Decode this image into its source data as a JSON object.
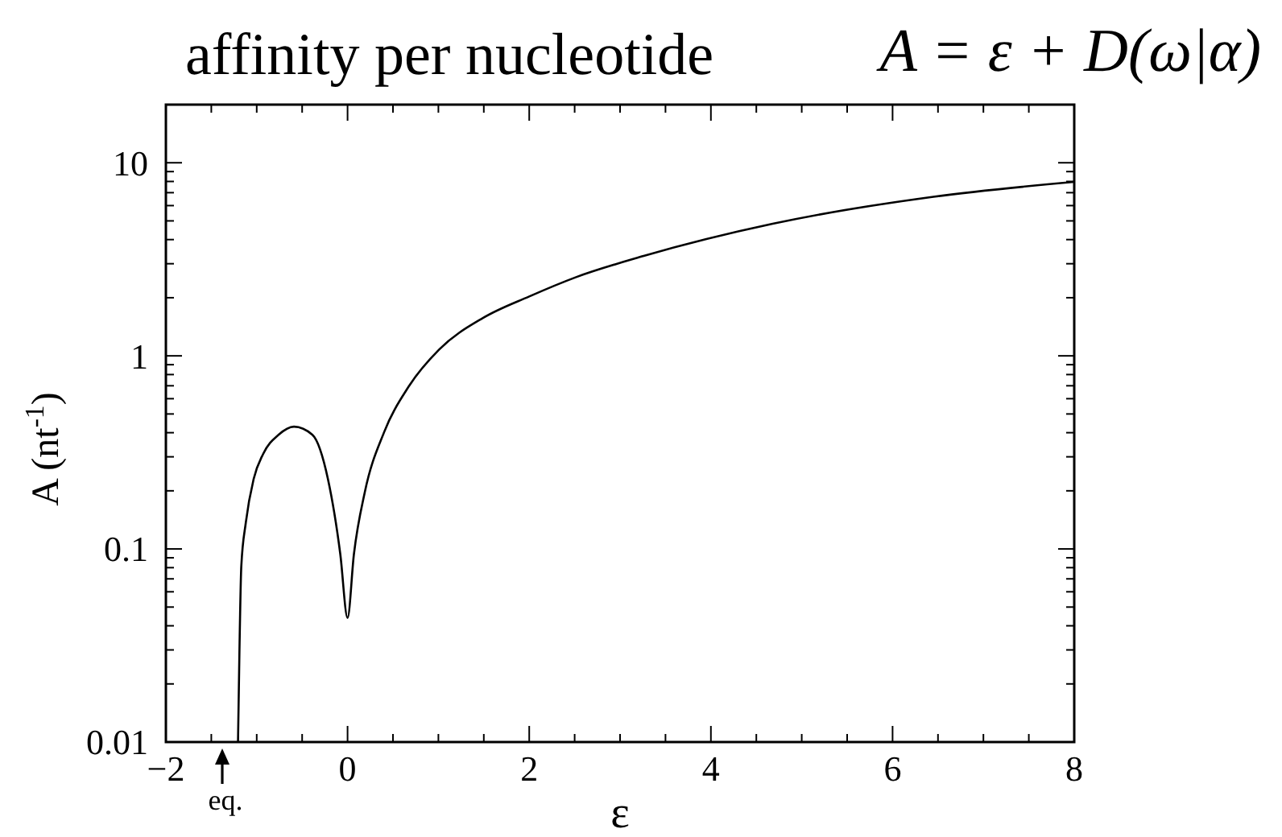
{
  "chart_data": {
    "type": "line",
    "title": "affinity per nucleotide",
    "subtitle": "A = ε + D(ω|α)",
    "xlabel": "ε",
    "ylabel": "A  (nt$^{-1}$)",
    "x": [
      -1.206,
      -1.19,
      -1.17,
      -1.12,
      -1.034,
      -0.93,
      -0.76,
      -0.59,
      -0.387,
      -0.216,
      -0.08,
      0,
      0.07,
      0.19,
      0.4,
      0.67,
      1.01,
      1.49,
      2,
      2.51,
      3.26,
      4.68,
      6.45,
      8
    ],
    "series": [
      {
        "color": "#000000",
        "values": [
          0.01,
          0.03,
          0.081,
          0.137,
          0.23,
          0.31,
          0.39,
          0.43,
          0.39,
          0.23,
          0.094,
          0.044,
          0.094,
          0.197,
          0.4,
          0.69,
          1.08,
          1.57,
          2.03,
          2.55,
          3.29,
          4.83,
          6.67,
          7.96
        ]
      }
    ],
    "xlim": [
      -2,
      8
    ],
    "ylim": [
      0.01,
      20
    ],
    "log": "y",
    "xticks": [
      {
        "value": -2,
        "label": "−2"
      },
      {
        "value": -1.5,
        "label": null
      },
      {
        "value": -1,
        "label": null
      },
      {
        "value": -0.5,
        "label": null
      },
      0,
      {
        "value": 0.5,
        "label": null
      },
      {
        "value": 1,
        "label": null
      },
      {
        "value": 1.5,
        "label": null
      },
      2,
      {
        "value": 2.5,
        "label": null
      },
      {
        "value": 3,
        "label": null
      },
      {
        "value": 3.5,
        "label": null
      },
      4,
      {
        "value": 4.5,
        "label": null
      },
      {
        "value": 5,
        "label": null
      },
      {
        "value": 5.5,
        "label": null
      },
      6,
      {
        "value": 6.5,
        "label": null
      },
      {
        "value": 7,
        "label": null
      },
      {
        "value": 7.5,
        "label": null
      },
      8
    ],
    "yticks": [
      0.01,
      {
        "value": 0.02,
        "label": null
      },
      {
        "value": 0.03,
        "label": null
      },
      {
        "value": 0.04,
        "label": null
      },
      {
        "value": 0.05,
        "label": null
      },
      {
        "value": 0.06,
        "label": null
      },
      {
        "value": 0.07,
        "label": null
      },
      {
        "value": 0.08,
        "label": null
      },
      {
        "value": 0.09,
        "label": null
      },
      0.1,
      {
        "value": 0.2,
        "label": null
      },
      {
        "value": 0.3,
        "label": null
      },
      {
        "value": 0.4,
        "label": null
      },
      {
        "value": 0.5,
        "label": null
      },
      {
        "value": 0.6,
        "label": null
      },
      {
        "value": 0.7,
        "label": null
      },
      {
        "value": 0.8,
        "label": null
      },
      {
        "value": 0.9,
        "label": null
      },
      1,
      {
        "value": 2,
        "label": null
      },
      {
        "value": 3,
        "label": null
      },
      {
        "value": 4,
        "label": null
      },
      {
        "value": 5,
        "label": null
      },
      {
        "value": 6,
        "label": null
      },
      {
        "value": 7,
        "label": null
      },
      {
        "value": 8,
        "label": null
      },
      {
        "value": 9,
        "label": null
      },
      10,
      {
        "value": 20,
        "label": null
      }
    ],
    "annotations": [
      "eq."
    ]
  }
}
